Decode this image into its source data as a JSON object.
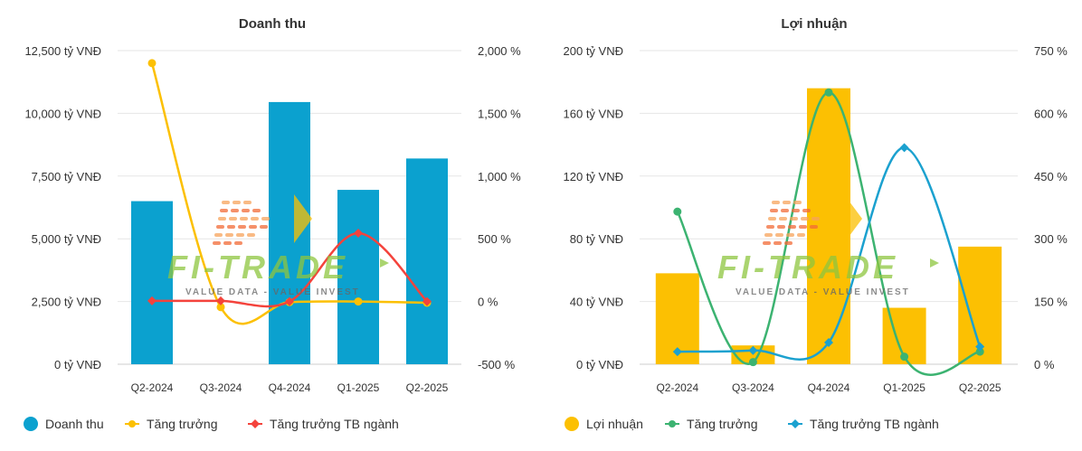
{
  "chart_data": [
    {
      "type": "bar+line",
      "title": "Doanh thu",
      "categories": [
        "Q2-2024",
        "Q3-2024",
        "Q4-2024",
        "Q1-2025",
        "Q2-2025"
      ],
      "bar_series": {
        "name": "Doanh thu",
        "color": "#0ba1cf",
        "values": [
          6500,
          null,
          10450,
          6950,
          8200
        ]
      },
      "line_series": [
        {
          "name": "Tăng trưởng",
          "color": "#fcc002",
          "marker": "circle",
          "values": [
            1900,
            -45,
            -5,
            0,
            -10
          ]
        },
        {
          "name": "Tăng trưởng TB ngành",
          "color": "#f4433c",
          "marker": "diamond",
          "values": [
            5,
            5,
            0,
            545,
            0
          ]
        }
      ],
      "y_left": {
        "min": 0,
        "max": 12500,
        "step": 2500,
        "ticks": [
          "0 tỷ VNĐ",
          "2,500 tỷ VNĐ",
          "5,000 tỷ VNĐ",
          "7,500 tỷ VNĐ",
          "10,000 tỷ VNĐ",
          "12,500 tỷ VNĐ"
        ]
      },
      "y_right": {
        "min": -500,
        "max": 2000,
        "step": 500,
        "ticks": [
          "-500 %",
          "0 %",
          "500 %",
          "1,000 %",
          "1,500 %",
          "2,000 %"
        ]
      },
      "grid": "horizontal",
      "legend_position": "bottom"
    },
    {
      "type": "bar+line",
      "title": "Lợi nhuận",
      "categories": [
        "Q2-2024",
        "Q3-2024",
        "Q4-2024",
        "Q1-2025",
        "Q2-2025"
      ],
      "bar_series": {
        "name": "Lợi nhuận",
        "color": "#fcc002",
        "values": [
          58,
          12,
          176,
          36,
          75
        ]
      },
      "line_series": [
        {
          "name": "Tăng trưởng",
          "color": "#3cb371",
          "marker": "circle",
          "values": [
            365,
            5,
            650,
            18,
            30
          ]
        },
        {
          "name": "Tăng trưởng TB ngành",
          "color": "#1ba1cf",
          "marker": "diamond",
          "values": [
            30,
            33,
            52,
            518,
            42
          ]
        }
      ],
      "y_left": {
        "min": 0,
        "max": 200,
        "step": 40,
        "ticks": [
          "0 tỷ VNĐ",
          "40 tỷ VNĐ",
          "80 tỷ VNĐ",
          "120 tỷ VNĐ",
          "160 tỷ VNĐ",
          "200 tỷ VNĐ"
        ]
      },
      "y_right": {
        "min": 0,
        "max": 750,
        "step": 150,
        "ticks": [
          "0 %",
          "150 %",
          "300 %",
          "450 %",
          "600 %",
          "750 %"
        ]
      },
      "grid": "horizontal",
      "legend_position": "bottom"
    }
  ],
  "watermark": {
    "brand": "FI-TRADE",
    "tagline": "VALUE DATA - VALUE INVEST"
  },
  "colors": {
    "grid": "#e6e6e6",
    "axis": "#cccccc",
    "text": "#333333"
  }
}
